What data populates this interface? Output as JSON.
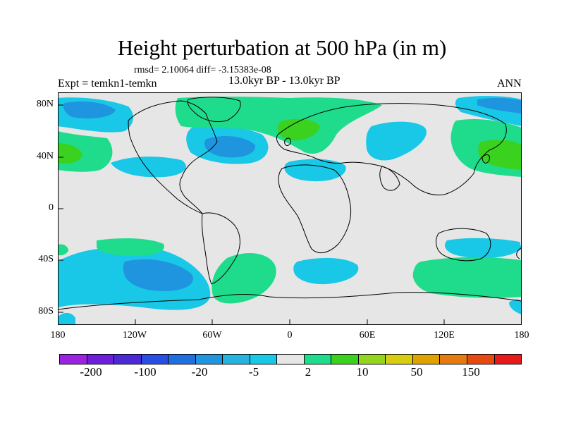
{
  "title": "Height perturbation at 500 hPa (in m)",
  "stats": "rmsd= 2.10064 diff= -3.15383e-08",
  "left_label": "Expt = temkn1-temkn",
  "center_label": "13.0kyr BP - 13.0kyr BP",
  "right_label": "ANN",
  "map": {
    "lat_labels": [
      "80N",
      "40N",
      "0",
      "40S",
      "80S"
    ],
    "lon_labels": [
      "180",
      "120W",
      "60W",
      "0",
      "60E",
      "120E",
      "180"
    ],
    "background_color": "#e6e6e6"
  },
  "colorbar": {
    "colors": [
      "#9a22e0",
      "#6f1fdc",
      "#4b2ad6",
      "#2a4ee4",
      "#1f6fe0",
      "#1f95e0",
      "#27b3e0",
      "#18c8e6",
      "#e6e6e6",
      "#1fdc8c",
      "#3ad21f",
      "#94d51f",
      "#d7cc10",
      "#e0a200",
      "#e57a10",
      "#e64a10",
      "#e61a1a"
    ],
    "labels": [
      "-200",
      "-100",
      "-20",
      "-5",
      "2",
      "10",
      "50",
      "150"
    ]
  }
}
